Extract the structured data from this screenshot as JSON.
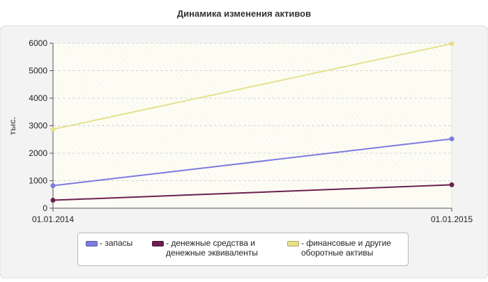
{
  "chart_data": {
    "type": "line",
    "title": "Динамика изменения активов",
    "xlabel": "",
    "ylabel": "тыс.",
    "x": [
      "01.01.2014",
      "01.01.2015"
    ],
    "ylim": [
      0,
      6000
    ],
    "yticks": [
      "0",
      "1000",
      "2000",
      "3000",
      "4000",
      "5000",
      "6000"
    ],
    "grid": true,
    "legend_position": "bottom",
    "series": [
      {
        "name": "- запасы",
        "values": [
          820,
          2520
        ],
        "color": "#7b7be0"
      },
      {
        "name": "- денежные средства и\nденежные эквиваленты",
        "values": [
          290,
          850
        ],
        "color": "#6b1f4f"
      },
      {
        "name": "- финансовые и другие\nоборотные активы",
        "values": [
          2870,
          5980
        ],
        "color": "#e6e08c"
      }
    ]
  }
}
